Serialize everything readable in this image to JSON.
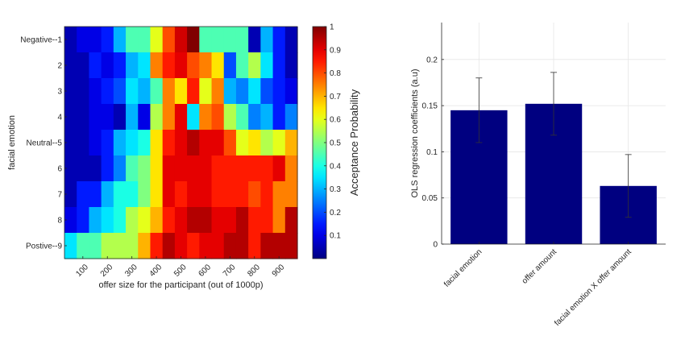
{
  "chart_data": [
    {
      "type": "heatmap",
      "xlabel": "offer size for the participant (out of 1000p)",
      "ylabel": "facial emotion",
      "x_tick_labels": [
        "100",
        "200",
        "300",
        "400",
        "500",
        "600",
        "700",
        "800",
        "900"
      ],
      "y_tick_labels": [
        "Negative--1",
        "2",
        "3",
        "4",
        "Neutral--5",
        "6",
        "7",
        "8",
        "Postive--9"
      ],
      "n_columns": 19,
      "n_rows": 9,
      "matrix": [
        [
          0.05,
          0.1,
          0.1,
          0.15,
          0.3,
          0.45,
          0.45,
          0.6,
          0.8,
          0.92,
          1.0,
          0.45,
          0.45,
          0.45,
          0.45,
          0.05,
          0.3,
          0.15,
          0.05
        ],
        [
          0.05,
          0.05,
          0.15,
          0.1,
          0.15,
          0.3,
          0.35,
          0.75,
          0.85,
          0.9,
          0.8,
          0.75,
          0.65,
          0.2,
          0.45,
          0.55,
          0.35,
          0.15,
          0.05
        ],
        [
          0.05,
          0.05,
          0.1,
          0.15,
          0.2,
          0.35,
          0.3,
          0.45,
          0.75,
          0.65,
          0.85,
          0.6,
          0.75,
          0.3,
          0.25,
          0.35,
          0.2,
          0.15,
          0.1
        ],
        [
          0.05,
          0.05,
          0.1,
          0.1,
          0.05,
          0.3,
          0.1,
          0.55,
          0.75,
          0.9,
          0.35,
          0.75,
          0.8,
          0.55,
          0.45,
          0.25,
          0.3,
          0.15,
          0.25
        ],
        [
          0.05,
          0.05,
          0.1,
          0.15,
          0.3,
          0.35,
          0.4,
          0.65,
          0.85,
          0.9,
          0.95,
          0.9,
          0.9,
          0.8,
          0.6,
          0.65,
          0.55,
          0.6,
          0.7
        ],
        [
          0.05,
          0.05,
          0.05,
          0.15,
          0.25,
          0.45,
          0.5,
          0.65,
          0.9,
          0.9,
          0.9,
          0.9,
          0.85,
          0.85,
          0.85,
          0.85,
          0.85,
          0.9,
          0.75
        ],
        [
          0.05,
          0.15,
          0.15,
          0.3,
          0.4,
          0.4,
          0.5,
          0.65,
          0.9,
          0.85,
          0.9,
          0.9,
          0.85,
          0.85,
          0.85,
          0.8,
          0.85,
          0.75,
          0.75
        ],
        [
          0.1,
          0.15,
          0.3,
          0.35,
          0.4,
          0.55,
          0.6,
          0.7,
          0.85,
          0.9,
          0.95,
          0.95,
          0.9,
          0.9,
          0.95,
          0.85,
          0.85,
          0.75,
          0.95
        ],
        [
          0.35,
          0.45,
          0.45,
          0.55,
          0.55,
          0.55,
          0.7,
          0.85,
          0.95,
          0.9,
          0.85,
          0.9,
          0.9,
          0.95,
          0.95,
          0.85,
          0.95,
          0.95,
          0.95
        ]
      ],
      "colorbar": {
        "label": "Acceptance Probability",
        "range": [
          0,
          1
        ],
        "colormap": "jet",
        "ticks": [
          "0.1",
          "0.2",
          "0.3",
          "0.4",
          "0.5",
          "0.6",
          "0.7",
          "0.8",
          "0.9",
          "1"
        ]
      }
    },
    {
      "type": "bar",
      "categories": [
        "facial emotion",
        "offer amount",
        "facial emotion X offer amount"
      ],
      "values": [
        0.145,
        0.152,
        0.063
      ],
      "error": [
        0.035,
        0.034,
        0.034
      ],
      "ylabel": "OLS regression coefficients (a.u)",
      "xlabel": "",
      "ylim": [
        0,
        0.24
      ],
      "y_ticks": [
        "0",
        "0.05",
        "0.1",
        "0.15",
        "0.2"
      ],
      "grid": true,
      "bar_color": "#000080"
    }
  ]
}
